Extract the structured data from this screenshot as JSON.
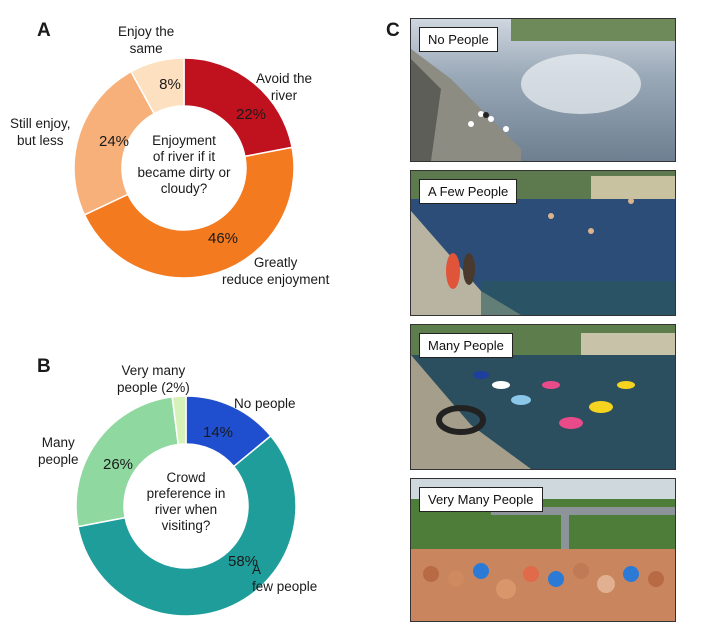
{
  "panel_a": {
    "letter": "A",
    "center": "Enjoyment\nof river if it\nbecame dirty or\ncloudy?",
    "labels": {
      "enjoy_same": "Enjoy the\nsame",
      "avoid": "Avoid the\nriver",
      "still_enjoy": "Still enjoy,\nbut less",
      "greatly": "Greatly\nreduce enjoyment"
    }
  },
  "panel_b": {
    "letter": "B",
    "center": "Crowd\npreference in\nriver when\nvisiting?",
    "labels": {
      "very_many": "Very many\npeople (2%)",
      "no_people": "No people",
      "many": "Many\npeople",
      "few": "A\nfew people"
    }
  },
  "panel_c": {
    "letter": "C",
    "photos": [
      {
        "label": "No People"
      },
      {
        "label": "A Few People"
      },
      {
        "label": "Many People"
      },
      {
        "label": "Very Many People"
      }
    ]
  },
  "chart_data": [
    {
      "type": "pie",
      "title": "Enjoyment of river if it became dirty or cloudy?",
      "categories": [
        "Avoid the river",
        "Greatly reduce enjoyment",
        "Still enjoy, but less",
        "Enjoy the same"
      ],
      "values": [
        22,
        46,
        24,
        8
      ],
      "labels": [
        "22%",
        "46%",
        "24%",
        "8%"
      ],
      "colors": [
        "#c0111f",
        "#f47a1f",
        "#f7b07a",
        "#fde0bf"
      ]
    },
    {
      "type": "pie",
      "title": "Crowd preference in river when visiting?",
      "categories": [
        "No people",
        "A few people",
        "Many people",
        "Very many people"
      ],
      "values": [
        14,
        58,
        26,
        2
      ],
      "labels": [
        "14%",
        "58%",
        "26%",
        ""
      ],
      "colors": [
        "#1f4fcf",
        "#1f9d9b",
        "#8fd8a0",
        "#d6f2b8"
      ]
    }
  ]
}
